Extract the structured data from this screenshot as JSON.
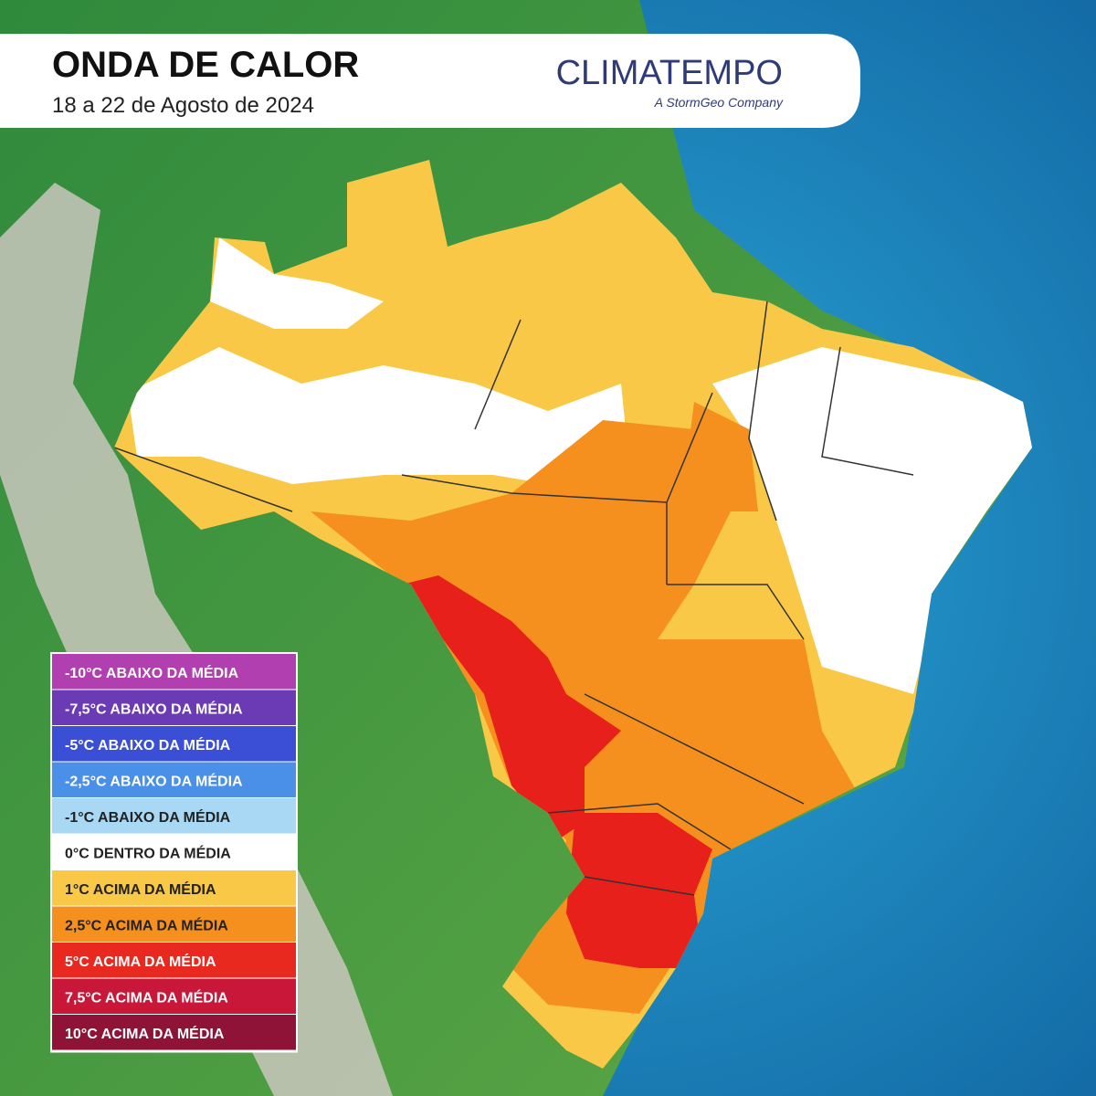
{
  "header": {
    "title": "ONDA DE CALOR",
    "subtitle": "18 a 22 de Agosto de 2024",
    "logo": "CLIMATEMPO",
    "tagline": "A StormGeo Company"
  },
  "legend": {
    "items": [
      {
        "label": "-10°C ABAIXO DA MÉDIA",
        "color": "#b13fb0"
      },
      {
        "label": "-7,5°C ABAIXO DA MÉDIA",
        "color": "#6a3bb4"
      },
      {
        "label": "-5°C ABAIXO DA MÉDIA",
        "color": "#3b4fd6"
      },
      {
        "label": "-2,5°C ABAIXO DA MÉDIA",
        "color": "#4a90e8"
      },
      {
        "label": "-1°C ABAIXO DA MÉDIA",
        "color": "#a8d8f4"
      },
      {
        "label": "0°C DENTRO DA MÉDIA",
        "color": "#ffffff"
      },
      {
        "label": "1°C ACIMA DA MÉDIA",
        "color": "#f8c846"
      },
      {
        "label": "2,5°C ACIMA DA MÉDIA",
        "color": "#f5901f"
      },
      {
        "label": "5°C ACIMA DA MÉDIA",
        "color": "#e8291f"
      },
      {
        "label": "7,5°C ACIMA DA MÉDIA",
        "color": "#c9173a"
      },
      {
        "label": "10°C ACIMA DA MÉDIA",
        "color": "#8e1336"
      }
    ]
  }
}
